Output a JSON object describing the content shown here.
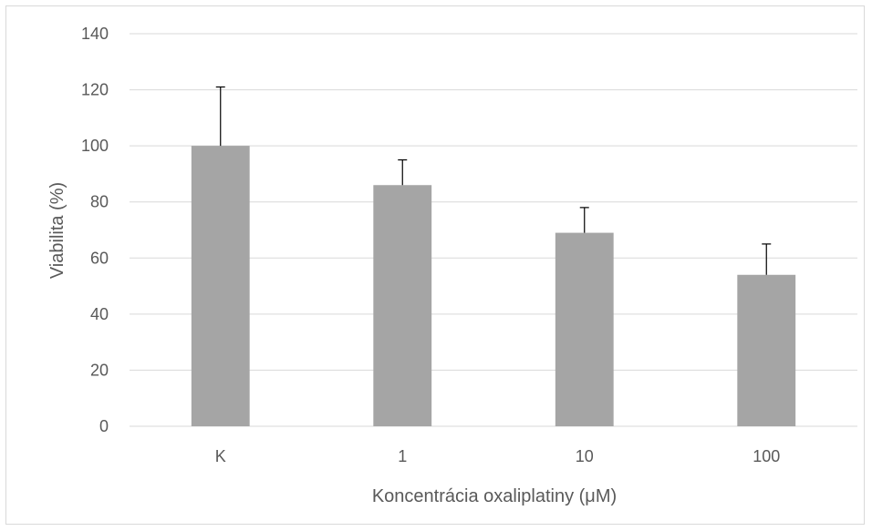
{
  "chart_data": {
    "type": "bar",
    "categories": [
      "K",
      "1",
      "10",
      "100"
    ],
    "values": [
      100,
      86,
      69,
      54
    ],
    "error_plus": [
      21,
      9,
      9,
      11
    ],
    "xlabel": "Koncentrácia oxaliplatiny (μM)",
    "ylabel": "Viabilita (%)",
    "ylim": [
      0,
      140
    ],
    "yticks": [
      0,
      20,
      40,
      60,
      80,
      100,
      120,
      140
    ],
    "grid": true,
    "legend": "none",
    "colors": {
      "bar": "#a5a5a5",
      "grid": "#d9d9d9",
      "error": "#000000"
    }
  }
}
